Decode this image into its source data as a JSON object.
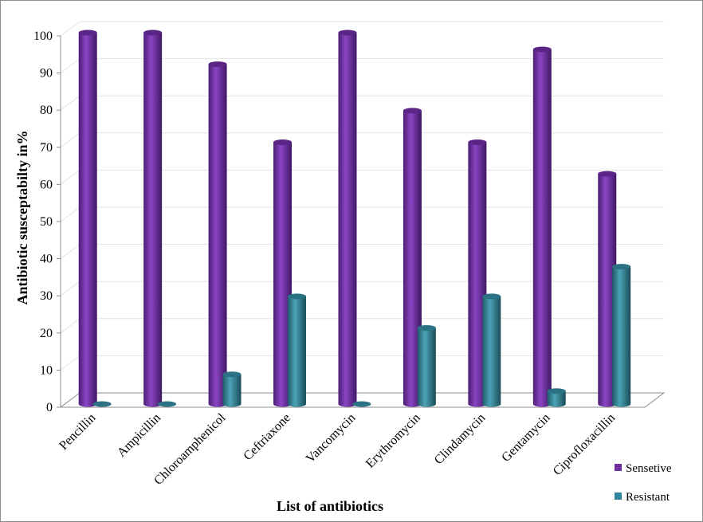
{
  "chart_data": {
    "type": "bar",
    "title": "",
    "xlabel": "List of antibiotics",
    "ylabel": "Antibiotic susceptabilty in%",
    "ylim": [
      0,
      100
    ],
    "yticks": [
      0,
      10,
      20,
      30,
      40,
      50,
      60,
      70,
      80,
      90,
      100
    ],
    "grid": true,
    "legend_position": "bottom-right",
    "categories": [
      "Pencillin",
      "Ampicillin",
      "Chloroamphenicol",
      "Ceftriaxone",
      "Vancomycin",
      "Erythromycin",
      "Clindamycin",
      "Gentamycin",
      "Ciprofloxacillin"
    ],
    "series": [
      {
        "name": "Sensetive",
        "color": "#7030a0",
        "values": [
          100,
          100,
          91.5,
          70.5,
          100,
          79,
          70.5,
          95.5,
          62
        ]
      },
      {
        "name": "Resistant",
        "color": "#31859c",
        "values": [
          0,
          0,
          8,
          29,
          0,
          20.5,
          29,
          3.5,
          37
        ]
      }
    ]
  }
}
